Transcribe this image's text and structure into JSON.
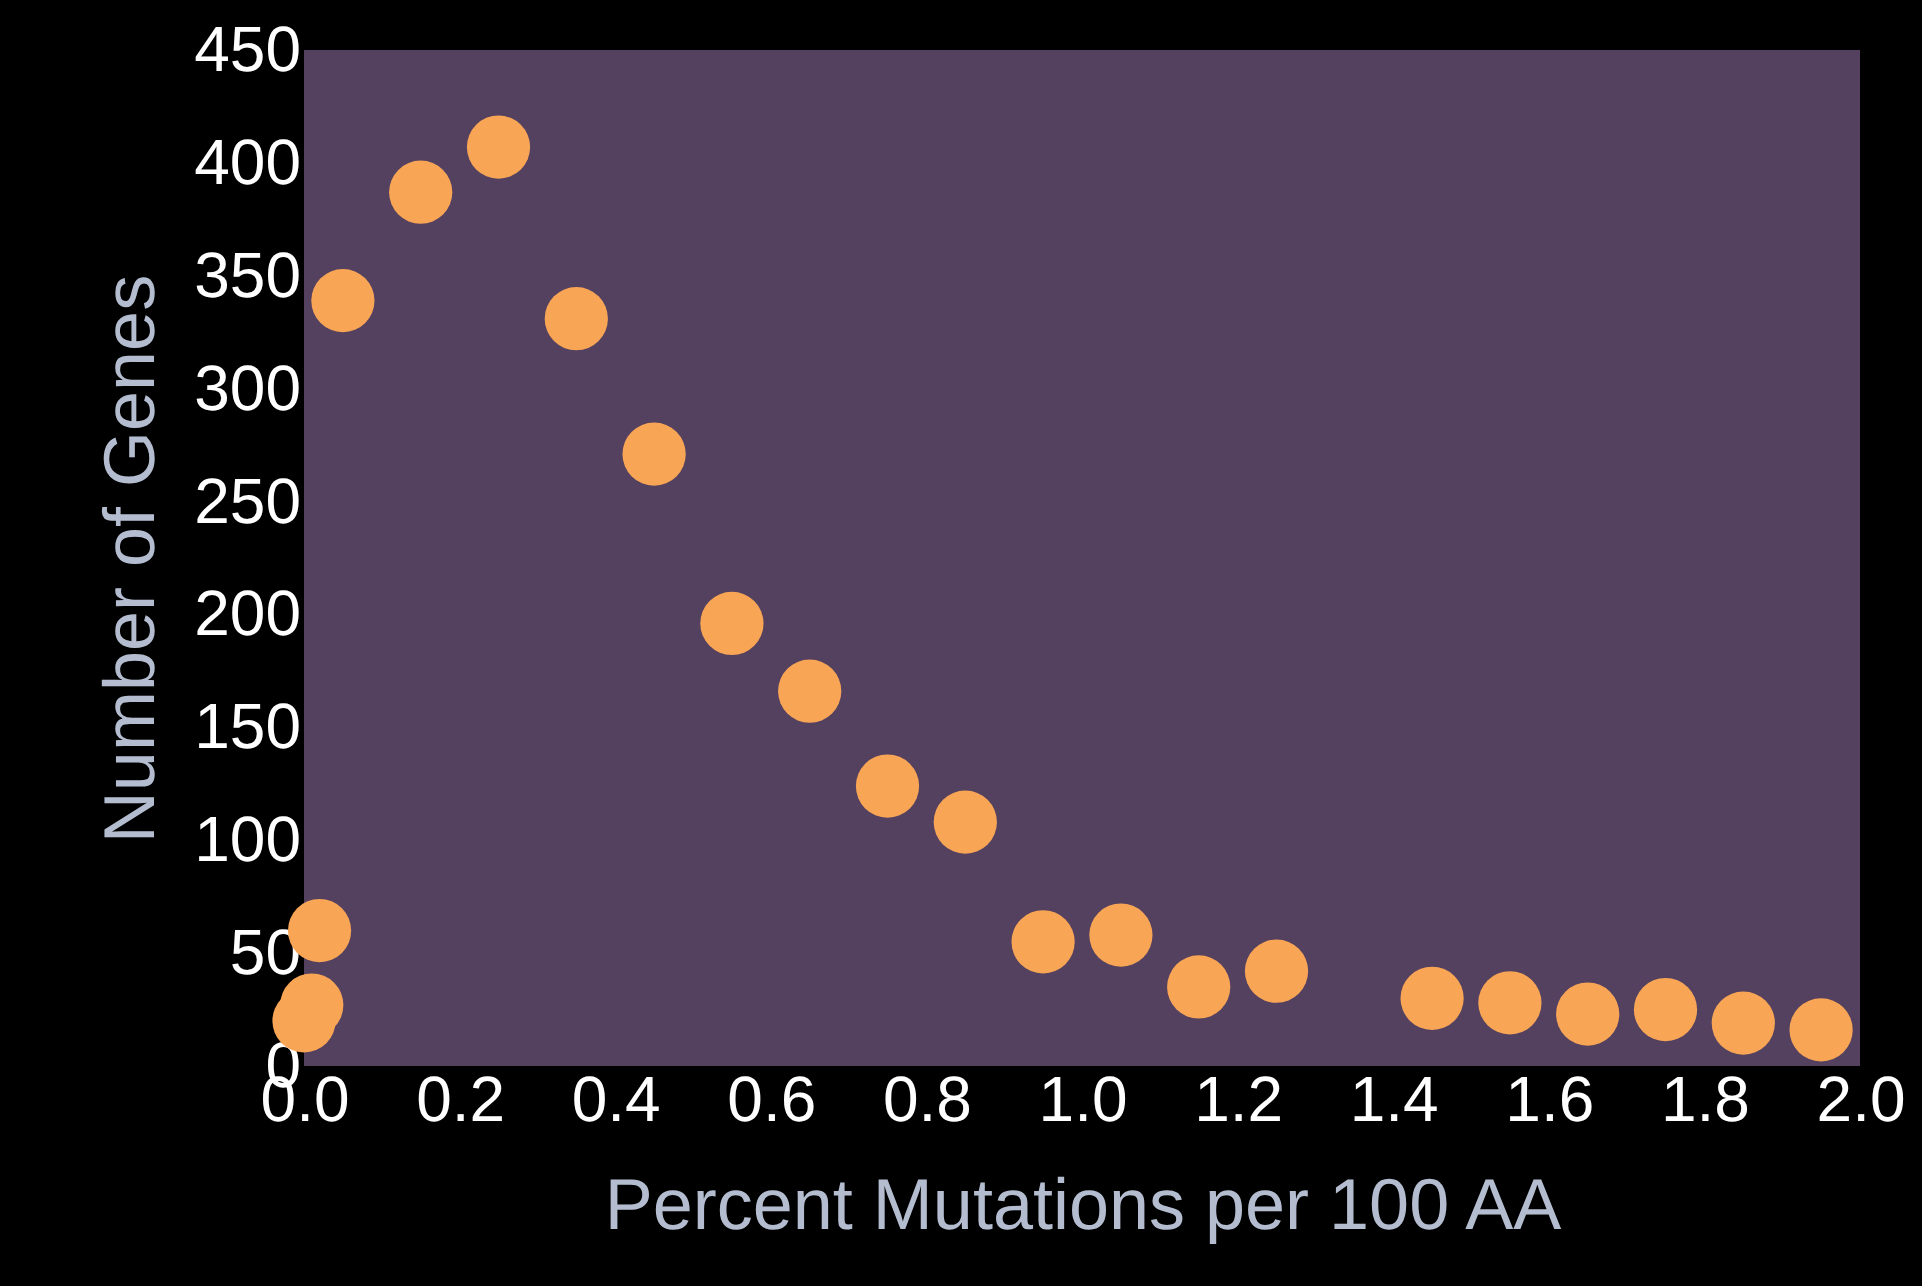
{
  "chart_data": {
    "type": "scatter",
    "xlabel": "Percent Mutations per 100 AA",
    "ylabel": "Number of Genes",
    "x": [
      0.0,
      0.01,
      0.02,
      0.05,
      0.15,
      0.25,
      0.35,
      0.45,
      0.55,
      0.65,
      0.75,
      0.85,
      0.95,
      1.05,
      1.15,
      1.25,
      1.45,
      1.55,
      1.65,
      1.75,
      1.85,
      1.95
    ],
    "series": [
      {
        "color": "#f9a556",
        "values": [
          20,
          27,
          60,
          339,
          387,
          407,
          331,
          271,
          196,
          166,
          124,
          108,
          55,
          58,
          35,
          42,
          30,
          28,
          23,
          25,
          19,
          16
        ]
      }
    ],
    "xlim": [
      0,
      2
    ],
    "xticks": [
      {
        "value": 0,
        "label": "0.0"
      },
      0.2,
      0.4,
      0.6,
      0.8,
      {
        "value": 1,
        "label": "1.0"
      },
      1.2,
      1.4,
      1.6,
      1.8,
      {
        "value": 2,
        "label": "2.0"
      }
    ],
    "ylim": [
      0,
      450
    ],
    "yticks": [
      0,
      50,
      100,
      150,
      200,
      250,
      300,
      350,
      400,
      450
    ],
    "grid": false,
    "marker": "circle"
  }
}
